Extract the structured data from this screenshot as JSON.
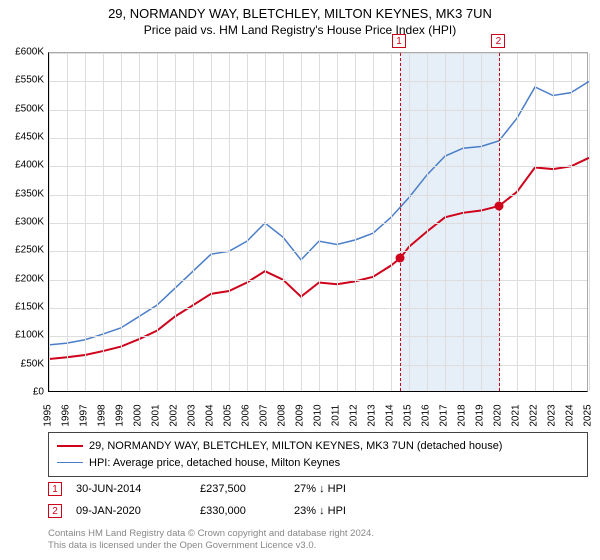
{
  "title": "29, NORMANDY WAY, BLETCHLEY, MILTON KEYNES, MK3 7UN",
  "subtitle": "Price paid vs. HM Land Registry's House Price Index (HPI)",
  "chart": {
    "type": "line",
    "background_color": "#ffffff",
    "grid_color": "#dddddd",
    "border_color_axes": "#000000",
    "border_color_outer": "#aaaaaa",
    "x_years": [
      1995,
      1996,
      1997,
      1998,
      1999,
      2000,
      2001,
      2002,
      2003,
      2004,
      2005,
      2006,
      2007,
      2008,
      2009,
      2010,
      2011,
      2012,
      2013,
      2014,
      2015,
      2016,
      2017,
      2018,
      2019,
      2020,
      2021,
      2022,
      2023,
      2024,
      2025
    ],
    "xlim": [
      1995,
      2025
    ],
    "y_ticks": [
      0,
      50000,
      100000,
      150000,
      200000,
      250000,
      300000,
      350000,
      400000,
      450000,
      500000,
      550000,
      600000
    ],
    "y_tick_labels": [
      "£0",
      "£50K",
      "£100K",
      "£150K",
      "£200K",
      "£250K",
      "£300K",
      "£350K",
      "£400K",
      "£450K",
      "£500K",
      "£550K",
      "£600K"
    ],
    "ylim": [
      0,
      600000
    ],
    "series": [
      {
        "id": "property",
        "label": "29, NORMANDY WAY, BLETCHLEY, MILTON KEYNES, MK3 7UN (detached house)",
        "color": "#d0021b",
        "line_width": 2,
        "data": [
          [
            1995,
            60000
          ],
          [
            1996,
            63000
          ],
          [
            1997,
            67000
          ],
          [
            1998,
            74000
          ],
          [
            1999,
            82000
          ],
          [
            2000,
            95000
          ],
          [
            2001,
            110000
          ],
          [
            2002,
            135000
          ],
          [
            2003,
            155000
          ],
          [
            2004,
            175000
          ],
          [
            2005,
            180000
          ],
          [
            2006,
            195000
          ],
          [
            2007,
            215000
          ],
          [
            2008,
            200000
          ],
          [
            2009,
            170000
          ],
          [
            2010,
            195000
          ],
          [
            2011,
            192000
          ],
          [
            2012,
            197000
          ],
          [
            2013,
            205000
          ],
          [
            2014,
            225000
          ],
          [
            2014.5,
            237500
          ],
          [
            2015,
            258000
          ],
          [
            2016,
            285000
          ],
          [
            2017,
            310000
          ],
          [
            2018,
            318000
          ],
          [
            2019,
            322000
          ],
          [
            2020,
            330000
          ],
          [
            2021,
            355000
          ],
          [
            2022,
            398000
          ],
          [
            2023,
            395000
          ],
          [
            2024,
            400000
          ],
          [
            2025,
            415000
          ]
        ]
      },
      {
        "id": "hpi",
        "label": "HPI: Average price, detached house, Milton Keynes",
        "color": "#4a7ec8",
        "line_width": 1.5,
        "data": [
          [
            1995,
            85000
          ],
          [
            1996,
            88000
          ],
          [
            1997,
            94000
          ],
          [
            1998,
            104000
          ],
          [
            1999,
            115000
          ],
          [
            2000,
            135000
          ],
          [
            2001,
            155000
          ],
          [
            2002,
            185000
          ],
          [
            2003,
            215000
          ],
          [
            2004,
            245000
          ],
          [
            2005,
            250000
          ],
          [
            2006,
            268000
          ],
          [
            2007,
            300000
          ],
          [
            2008,
            275000
          ],
          [
            2009,
            235000
          ],
          [
            2010,
            268000
          ],
          [
            2011,
            262000
          ],
          [
            2012,
            270000
          ],
          [
            2013,
            282000
          ],
          [
            2014,
            310000
          ],
          [
            2015,
            345000
          ],
          [
            2016,
            385000
          ],
          [
            2017,
            418000
          ],
          [
            2018,
            432000
          ],
          [
            2019,
            435000
          ],
          [
            2020,
            445000
          ],
          [
            2021,
            485000
          ],
          [
            2022,
            540000
          ],
          [
            2023,
            525000
          ],
          [
            2024,
            530000
          ],
          [
            2025,
            550000
          ]
        ]
      }
    ],
    "shade_band": {
      "x_start": 2014.5,
      "x_end": 2020.02,
      "color": "#e6eef8"
    },
    "sale_markers": [
      {
        "num": "1",
        "x": 2014.5,
        "y": 237500
      },
      {
        "num": "2",
        "x": 2020.02,
        "y": 330000
      }
    ],
    "marker_line_color": "#d0021b",
    "marker_box_border": "#d0021b",
    "marker_box_text": "#d0021b",
    "sale_dot_color": "#d0021b",
    "xtick_fontsize": 10,
    "ytick_fontsize": 10,
    "xtick_rotation": -90
  },
  "legend": {
    "border_color": "#444444",
    "fontsize": 11
  },
  "sales": [
    {
      "num": "1",
      "date": "30-JUN-2014",
      "price": "£237,500",
      "diff": "27% ↓ HPI"
    },
    {
      "num": "2",
      "date": "09-JAN-2020",
      "price": "£330,000",
      "diff": "23% ↓ HPI"
    }
  ],
  "footnote_line1": "Contains HM Land Registry data © Crown copyright and database right 2024.",
  "footnote_line2": "This data is licensed under the Open Government Licence v3.0."
}
